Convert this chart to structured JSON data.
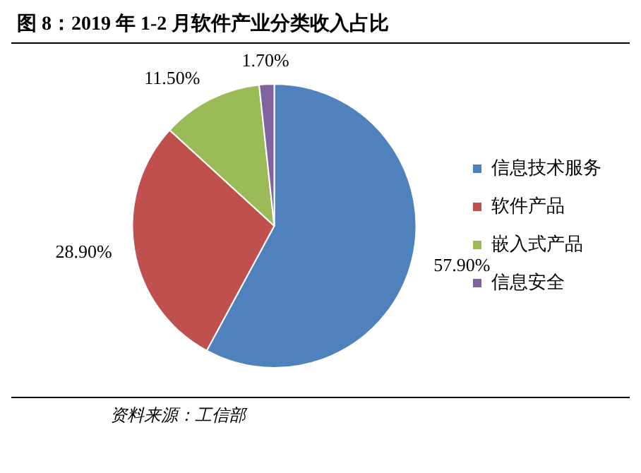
{
  "chart_data": {
    "type": "pie",
    "title": "图 8：2019 年 1-2 月软件产业分类收入占比",
    "categories": [
      "信息技术服务",
      "软件产品",
      "嵌入式产品",
      "信息安全"
    ],
    "values": [
      57.9,
      28.9,
      11.5,
      1.7
    ],
    "colors": [
      "#4f81bd",
      "#c0504d",
      "#9bbb59",
      "#8064a2"
    ],
    "value_labels": [
      "57.90%",
      "28.90%",
      "11.50%",
      "1.70%"
    ],
    "legend": "right",
    "annotations": [
      "资料来源：工信部"
    ]
  }
}
